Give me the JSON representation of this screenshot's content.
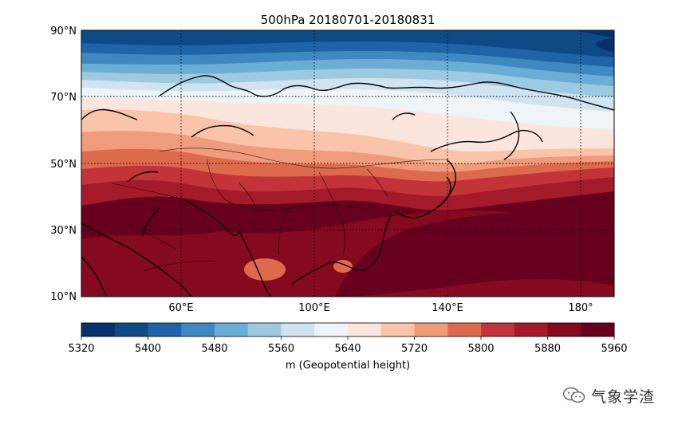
{
  "title": "500hPa   20180701-20180831",
  "map": {
    "lat_ticks": [
      "90°N",
      "70°N",
      "50°N",
      "30°N",
      "10°N"
    ],
    "lon_ticks": [
      "60°E",
      "100°E",
      "140°E",
      "180°"
    ],
    "gridlines": true,
    "extent": {
      "lon_min": 30,
      "lon_max": 190,
      "lat_min": 10,
      "lat_max": 90
    }
  },
  "colorbar": {
    "label": "m (Geopotential height)",
    "tick_labels": [
      "5320",
      "5400",
      "5480",
      "5560",
      "5640",
      "5720",
      "5800",
      "5880",
      "5960"
    ],
    "levels": [
      5320,
      5360,
      5400,
      5440,
      5480,
      5520,
      5560,
      5600,
      5640,
      5680,
      5720,
      5760,
      5800,
      5840,
      5880,
      5920,
      5960
    ],
    "colors": [
      "#08306b",
      "#0e4a86",
      "#1f64a8",
      "#3f88c1",
      "#6aaed6",
      "#9ecae1",
      "#d0e3f0",
      "#eef4f8",
      "#fbe5dc",
      "#f9c4aa",
      "#f09b7a",
      "#de6a4e",
      "#c2333a",
      "#a51a2b",
      "#85091f",
      "#67001f"
    ]
  },
  "watermark": {
    "text": "气象学渣"
  }
}
